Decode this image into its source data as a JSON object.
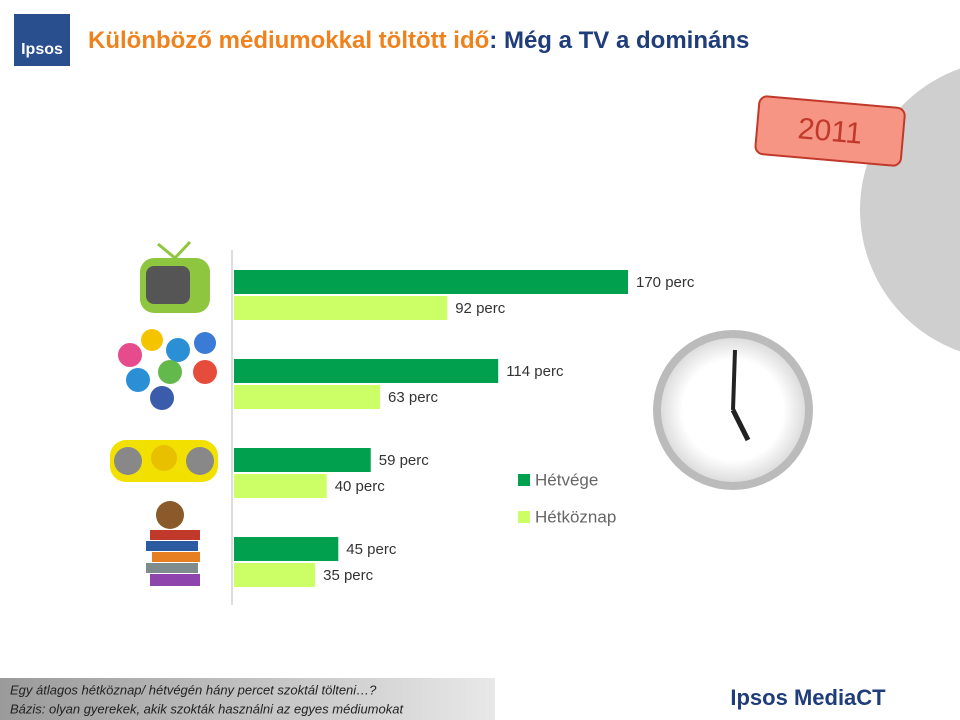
{
  "chart_data": {
    "type": "hbar",
    "title": [
      "Különböző médiumokkal töltött idő",
      ": Még a TV a domináns"
    ],
    "badge": "2011",
    "categories": [
      null,
      null,
      null,
      null
    ],
    "series": [
      {
        "name": "Hétvége",
        "color": "#00a04f",
        "values": [
          170,
          114,
          59,
          45
        ],
        "value_labels": [
          "170 perc",
          "114 perc",
          "59 perc",
          "45 perc"
        ]
      },
      {
        "name": "Hétköznap",
        "color": "#ccff66",
        "values": [
          92,
          63,
          40,
          35
        ],
        "value_labels": [
          "92 perc",
          "63 perc",
          "40 perc",
          "35 perc"
        ]
      }
    ],
    "footnotes": [
      "Egy átlagos hétköznap/ hétvégén hány percet szoktál tölteni…?",
      "Bázis: olyan gyerekek, akik szokták használni az egyes médiumokat"
    ],
    "logo": "Ipsos",
    "brand": "Ipsos MediaCT"
  }
}
